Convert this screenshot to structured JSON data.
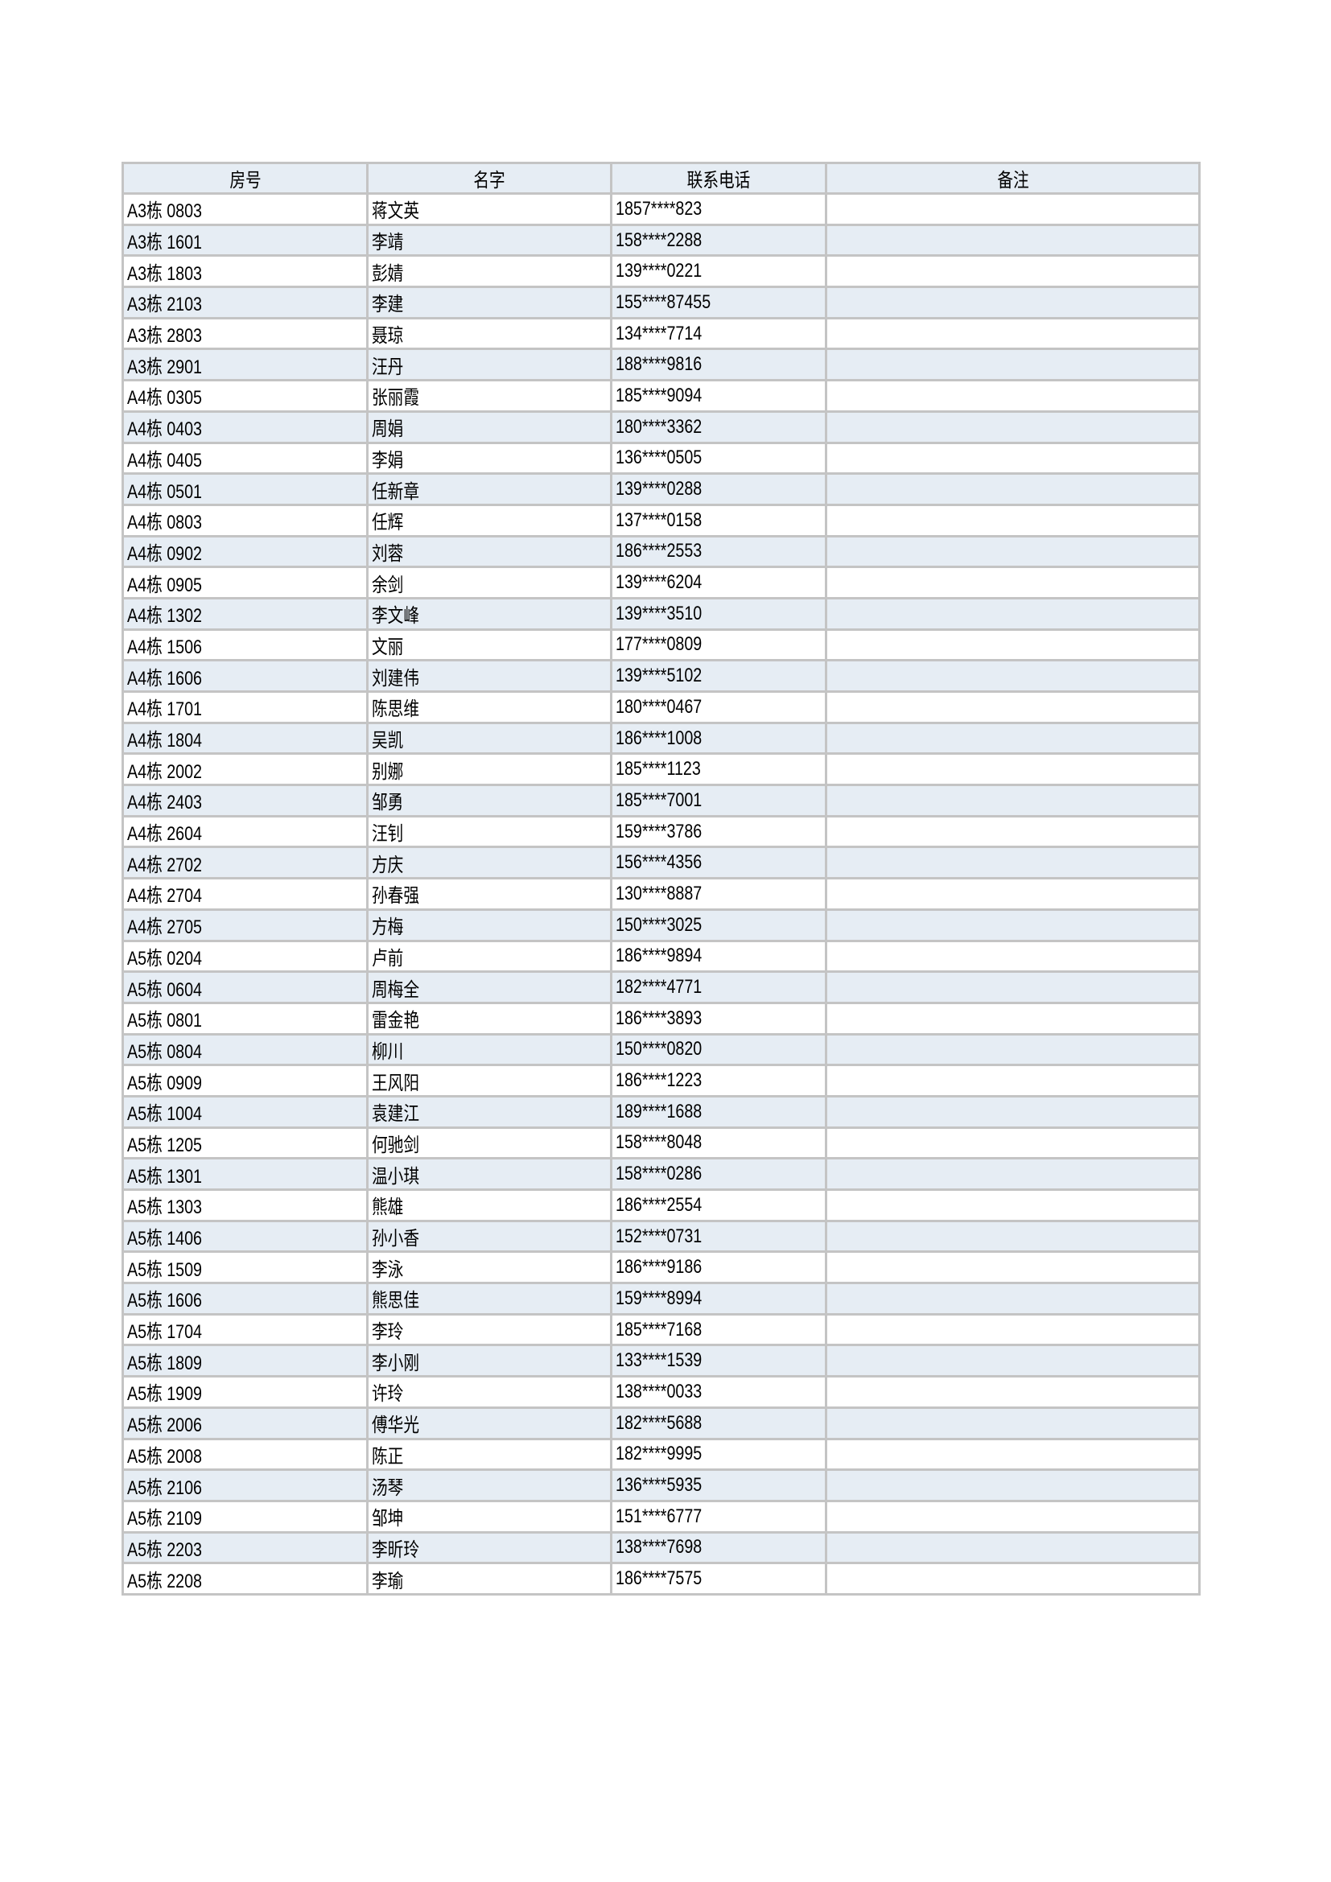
{
  "table": {
    "headers": [
      "房号",
      "名字",
      "联系电话",
      "备注"
    ],
    "rows": [
      [
        "A3栋 0803",
        "蒋文英",
        "1857****823",
        ""
      ],
      [
        "A3栋 1601",
        "李靖",
        "158****2288",
        ""
      ],
      [
        "A3栋 1803",
        "彭婧",
        "139****0221",
        ""
      ],
      [
        "A3栋 2103",
        "李建",
        "155****87455",
        ""
      ],
      [
        "A3栋 2803",
        "聂琼",
        "134****7714",
        ""
      ],
      [
        "A3栋 2901",
        "汪丹",
        "188****9816",
        ""
      ],
      [
        "A4栋 0305",
        "张丽霞",
        "185****9094",
        ""
      ],
      [
        "A4栋 0403",
        "周娟",
        "180****3362",
        ""
      ],
      [
        "A4栋 0405",
        "李娟",
        "136****0505",
        ""
      ],
      [
        "A4栋 0501",
        "任新章",
        "139****0288",
        ""
      ],
      [
        "A4栋 0803",
        "任辉",
        "137****0158",
        ""
      ],
      [
        "A4栋 0902",
        "刘蓉",
        "186****2553",
        ""
      ],
      [
        "A4栋 0905",
        "余剑",
        "139****6204",
        ""
      ],
      [
        "A4栋 1302",
        "李文峰",
        "139****3510",
        ""
      ],
      [
        "A4栋 1506",
        "文丽",
        "177****0809",
        ""
      ],
      [
        "A4栋 1606",
        "刘建伟",
        "139****5102",
        ""
      ],
      [
        "A4栋 1701",
        "陈思维",
        "180****0467",
        ""
      ],
      [
        "A4栋 1804",
        "吴凯",
        "186****1008",
        ""
      ],
      [
        "A4栋 2002",
        "别娜",
        "185****1123",
        ""
      ],
      [
        "A4栋 2403",
        "邹勇",
        "185****7001",
        ""
      ],
      [
        "A4栋 2604",
        "汪钊",
        "159****3786",
        ""
      ],
      [
        "A4栋 2702",
        "方庆",
        "156****4356",
        ""
      ],
      [
        "A4栋 2704",
        "孙春强",
        "130****8887",
        ""
      ],
      [
        "A4栋 2705",
        "方梅",
        "150****3025",
        ""
      ],
      [
        "A5栋 0204",
        "卢前",
        "186****9894",
        ""
      ],
      [
        "A5栋 0604",
        "周梅全",
        "182****4771",
        ""
      ],
      [
        "A5栋 0801",
        "雷金艳",
        "186****3893",
        ""
      ],
      [
        "A5栋 0804",
        "柳川",
        "150****0820",
        ""
      ],
      [
        "A5栋 0909",
        "王风阳",
        "186****1223",
        ""
      ],
      [
        "A5栋 1004",
        "袁建江",
        "189****1688",
        ""
      ],
      [
        "A5栋 1205",
        "何驰剑",
        "158****8048",
        ""
      ],
      [
        "A5栋 1301",
        "温小琪",
        "158****0286",
        ""
      ],
      [
        "A5栋 1303",
        "熊雄",
        "186****2554",
        ""
      ],
      [
        "A5栋 1406",
        "孙小香",
        "152****0731",
        ""
      ],
      [
        "A5栋 1509",
        "李泳",
        "186****9186",
        ""
      ],
      [
        "A5栋 1606",
        "熊思佳",
        "159****8994",
        ""
      ],
      [
        "A5栋 1704",
        "李玲",
        "185****7168",
        ""
      ],
      [
        "A5栋 1809",
        "李小刚",
        "133****1539",
        ""
      ],
      [
        "A5栋 1909",
        "许玲",
        "138****0033",
        ""
      ],
      [
        "A5栋 2006",
        "傅华光",
        "182****5688",
        ""
      ],
      [
        "A5栋 2008",
        "陈正",
        "182****9995",
        ""
      ],
      [
        "A5栋 2106",
        "汤琴",
        "136****5935",
        ""
      ],
      [
        "A5栋 2109",
        "邹坤",
        "151****6777",
        ""
      ],
      [
        "A5栋 2203",
        "李昕玲",
        "138****7698",
        ""
      ],
      [
        "A5栋 2208",
        "李瑜",
        "186****7575",
        ""
      ]
    ]
  },
  "colors": {
    "header_bg": "#e6edf4",
    "alt_row_bg": "#e6edf4",
    "border": "#c4c4c4"
  }
}
